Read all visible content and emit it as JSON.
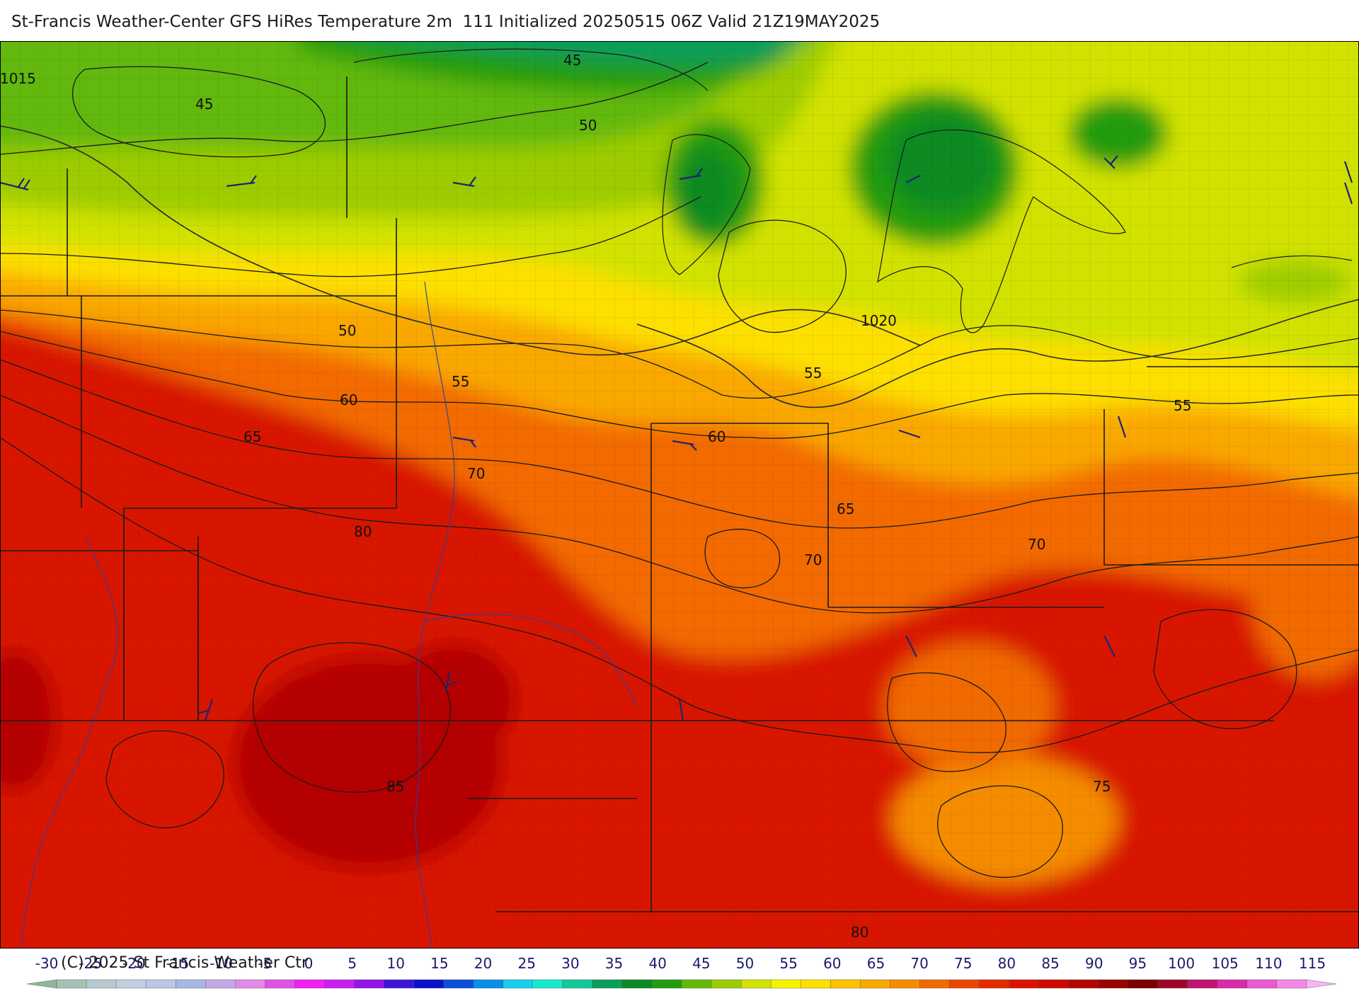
{
  "title": "St-Francis Weather-Center GFS HiRes Temperature 2m  111 Initialized 20250515 06Z Valid 21Z19MAY2025",
  "copyright": "(C) 2025 St Francis Weather Ctr",
  "contour_labels": [
    {
      "id": "lbl-45-north",
      "text": "45"
    },
    {
      "id": "lbl-1015",
      "text": "1015"
    },
    {
      "id": "lbl-45-west",
      "text": "45"
    },
    {
      "id": "lbl-50-lakes",
      "text": "50"
    },
    {
      "id": "lbl-50-plains",
      "text": "50"
    },
    {
      "id": "lbl-1020",
      "text": "1020"
    },
    {
      "id": "lbl-55-central",
      "text": "55"
    },
    {
      "id": "lbl-55-ohio",
      "text": "55"
    },
    {
      "id": "lbl-55-east",
      "text": "55"
    },
    {
      "id": "lbl-60-west",
      "text": "60"
    },
    {
      "id": "lbl-60-central",
      "text": "60"
    },
    {
      "id": "lbl-65-west",
      "text": "65"
    },
    {
      "id": "lbl-65-central",
      "text": "65"
    },
    {
      "id": "lbl-70-west",
      "text": "70"
    },
    {
      "id": "lbl-70-central",
      "text": "70"
    },
    {
      "id": "lbl-70-east",
      "text": "70"
    },
    {
      "id": "lbl-75-southeast",
      "text": "75"
    },
    {
      "id": "lbl-80-plains",
      "text": "80"
    },
    {
      "id": "lbl-80-south",
      "text": "80"
    },
    {
      "id": "lbl-85-southwest",
      "text": "85"
    }
  ],
  "colorbar": {
    "ticks": [
      "-30",
      "-25",
      "-20",
      "-15",
      "-10",
      "-5",
      "0",
      "5",
      "10",
      "15",
      "20",
      "25",
      "30",
      "35",
      "40",
      "45",
      "50",
      "55",
      "60",
      "65",
      "70",
      "75",
      "80",
      "85",
      "90",
      "95",
      "100",
      "105",
      "110",
      "115"
    ],
    "colors": [
      "#8fb59a",
      "#a3c2b3",
      "#b5c9cf",
      "#c3cde0",
      "#b9c6e6",
      "#a7b6e6",
      "#c2a9e6",
      "#e08be6",
      "#e052e6",
      "#f21ff2",
      "#c81ff0",
      "#9214e8",
      "#3c14d8",
      "#0c10c8",
      "#0a4fd8",
      "#0a8ee6",
      "#16cfe8",
      "#18e8cc",
      "#14c89a",
      "#0a9e5a",
      "#0c8a24",
      "#249c10",
      "#62b80a",
      "#9ccc06",
      "#d2e204",
      "#f2f400",
      "#fde000",
      "#fcc400",
      "#f9a800",
      "#f58c00",
      "#f06a00",
      "#ea4800",
      "#e42a00",
      "#de1200",
      "#cc0a00",
      "#b40600",
      "#980400",
      "#7c0000",
      "#9c0628",
      "#c01470",
      "#da2aa8",
      "#ea5ad2",
      "#f288e6",
      "#f8b4f2"
    ]
  },
  "field": {
    "variable": "2m temperature",
    "units": "F",
    "isobars_mb": [
      1015,
      1020
    ],
    "isotherm_labels_F": [
      45,
      50,
      55,
      60,
      65,
      70,
      75,
      80,
      85
    ]
  }
}
